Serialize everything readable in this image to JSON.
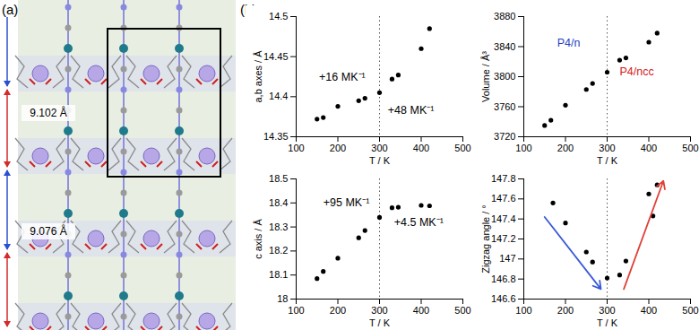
{
  "panel_labels": [
    "(a)",
    "(b)"
  ],
  "structure": {
    "distance_labels": [
      "9.102 Å",
      "9.076 Å"
    ]
  },
  "chart_data": [
    {
      "type": "scatter",
      "x_label": "T / K",
      "y_label": "a,b axes / Å",
      "x": [
        150,
        165,
        200,
        250,
        265,
        300,
        330,
        345,
        400,
        420
      ],
      "values": [
        14.372,
        14.374,
        14.388,
        14.395,
        14.398,
        14.405,
        14.422,
        14.427,
        14.46,
        14.485
      ],
      "color": "#000000",
      "xlim": [
        100,
        500
      ],
      "xticks": [
        100,
        200,
        300,
        400,
        500
      ],
      "ylim": [
        14.35,
        14.5
      ],
      "yticks": [
        14.35,
        14.4,
        14.45,
        14.5
      ],
      "reference_x": 300,
      "annotations": [
        {
          "text": "+16 MK⁻¹",
          "x": 155,
          "y": 14.425,
          "color": "#000000"
        },
        {
          "text": "+48 MK⁻¹",
          "x": 320,
          "y": 14.383,
          "color": "#000000"
        }
      ]
    },
    {
      "type": "scatter",
      "x_label": "T / K",
      "y_label": "Volume / Å³",
      "x": [
        150,
        165,
        200,
        250,
        265,
        300,
        330,
        345,
        400,
        420
      ],
      "values": [
        3735,
        3742,
        3762,
        3783,
        3791,
        3806,
        3822,
        3825,
        3846,
        3858
      ],
      "color": "#000000",
      "xlim": [
        100,
        500
      ],
      "xticks": [
        100,
        200,
        300,
        400,
        500
      ],
      "ylim": [
        3720,
        3880
      ],
      "yticks": [
        3720,
        3760,
        3800,
        3840,
        3880
      ],
      "reference_x": 300,
      "annotations": [
        {
          "text": "P4/n",
          "x": 180,
          "y": 3845,
          "color": "#1f3fbf"
        },
        {
          "text": "P4/ncc",
          "x": 330,
          "y": 3806,
          "color": "#d42020"
        }
      ]
    },
    {
      "type": "scatter",
      "x_label": "T / K",
      "y_label": "c axis / Å",
      "x": [
        150,
        165,
        200,
        250,
        265,
        300,
        330,
        345,
        400,
        420
      ],
      "values": [
        18.085,
        18.115,
        18.17,
        18.255,
        18.285,
        18.34,
        18.38,
        18.382,
        18.39,
        18.388
      ],
      "color": "#000000",
      "xlim": [
        100,
        500
      ],
      "xticks": [
        100,
        200,
        300,
        400,
        500
      ],
      "ylim": [
        18,
        18.5
      ],
      "yticks": [
        18,
        18.1,
        18.2,
        18.3,
        18.4,
        18.5
      ],
      "reference_x": 300,
      "annotations": [
        {
          "text": "+95 MK⁻¹",
          "x": 165,
          "y": 18.4,
          "color": "#000000"
        },
        {
          "text": "+4.5 MK⁻¹",
          "x": 335,
          "y": 18.32,
          "color": "#000000"
        }
      ]
    },
    {
      "type": "scatter",
      "x_label": "T / K",
      "y_label": "Zigzag angle / °",
      "x": [
        170,
        200,
        250,
        265,
        300,
        330,
        345,
        400,
        410,
        420
      ],
      "values": [
        147.56,
        147.36,
        147.07,
        146.97,
        146.81,
        146.84,
        146.98,
        147.65,
        147.43,
        147.74
      ],
      "color": "#000000",
      "xlim": [
        100,
        500
      ],
      "xticks": [
        100,
        200,
        300,
        400,
        500
      ],
      "ylim": [
        146.6,
        147.8
      ],
      "yticks": [
        146.6,
        146.8,
        147,
        147.2,
        147.4,
        147.6,
        147.8
      ],
      "reference_x": 300,
      "arrows": [
        {
          "x1": 150,
          "y1": 147.42,
          "x2": 285,
          "y2": 146.7,
          "color": "#3a5ad8"
        },
        {
          "x1": 340,
          "y1": 146.7,
          "x2": 435,
          "y2": 147.78,
          "color": "#e0403a"
        }
      ]
    }
  ]
}
